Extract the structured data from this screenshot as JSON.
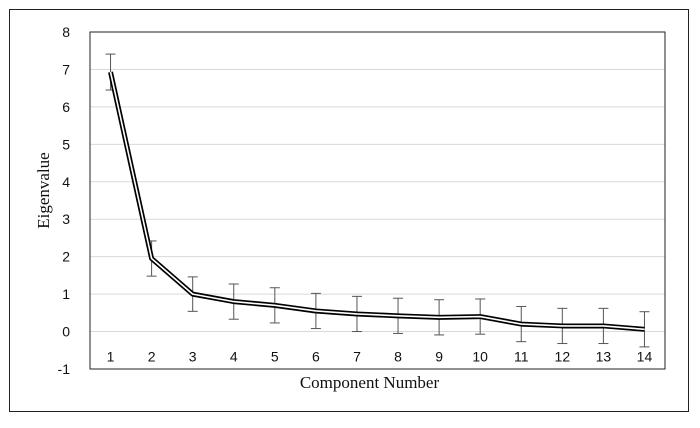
{
  "chart_data": {
    "type": "line",
    "title": "",
    "xlabel": "Component Number",
    "ylabel": "Eigenvalue",
    "x": [
      1,
      2,
      3,
      4,
      5,
      6,
      7,
      8,
      9,
      10,
      11,
      12,
      13,
      14
    ],
    "series": [
      {
        "values": [
          6.93,
          1.95,
          1.0,
          0.8,
          0.7,
          0.55,
          0.47,
          0.42,
          0.38,
          0.4,
          0.2,
          0.15,
          0.15,
          0.06
        ],
        "error": [
          0.48,
          0.47,
          0.46,
          0.47,
          0.47,
          0.47,
          0.47,
          0.47,
          0.47,
          0.47,
          0.47,
          0.47,
          0.47,
          0.47
        ]
      }
    ],
    "ylim": [
      -1,
      8
    ],
    "yticks": [
      -1,
      0,
      1,
      2,
      3,
      4,
      5,
      6,
      7,
      8
    ],
    "grid": true,
    "legend": "none",
    "colors": {
      "line": "#000000",
      "grid": "#d9d9d9",
      "error_bar": "#555555"
    }
  }
}
